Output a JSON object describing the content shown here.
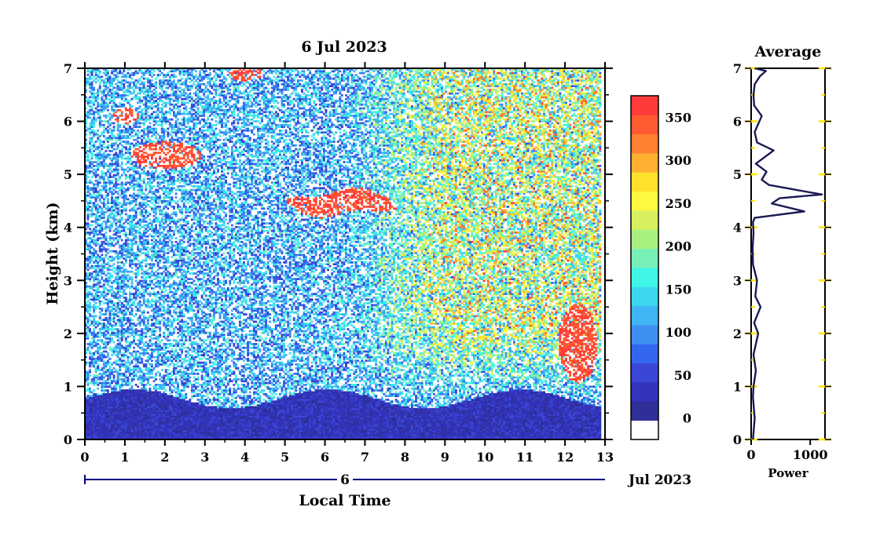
{
  "colors": {
    "axis": "#000000",
    "tick_yellow": "#ffe600",
    "navy": "#000080",
    "avg_line": "#1a1a55"
  },
  "chart_data": [
    {
      "type": "heatmap",
      "title": "6 Jul 2023",
      "xlabel": "Local Time",
      "ylabel": "Height (km)",
      "xlim": [
        0,
        13
      ],
      "ylim": [
        0,
        7
      ],
      "x_ticks": [
        "0",
        "1",
        "2",
        "3",
        "4",
        "5",
        "6",
        "7",
        "8",
        "9",
        "10",
        "11",
        "12",
        "13"
      ],
      "y_ticks": [
        "0",
        "1",
        "2",
        "3",
        "4",
        "5",
        "6",
        "7"
      ],
      "date_bar": {
        "day": "6",
        "month_year": "Jul 2023"
      },
      "colorbar": {
        "ticks": [
          "0",
          "50",
          "100",
          "150",
          "200",
          "250",
          "300",
          "350"
        ],
        "min": -25,
        "max": 375,
        "colors": [
          "#ffffff",
          "#2f2f99",
          "#3333bb",
          "#3a46d6",
          "#3366ee",
          "#3f8ff0",
          "#40b4f5",
          "#3dd8f0",
          "#40f6e6",
          "#78f0b8",
          "#a8f080",
          "#d6f060",
          "#fff840",
          "#ffe02a",
          "#ffb030",
          "#ff8030",
          "#ff5a30",
          "#ff3a3a"
        ]
      },
      "features": [
        {
          "name": "boundary layer",
          "x": [
            0,
            12.9
          ],
          "y": [
            0,
            1.0
          ],
          "value": 25
        },
        {
          "name": "main echo layer",
          "x": [
            4.6,
            8.3
          ],
          "y": [
            4.1,
            4.8
          ],
          "value": 375
        },
        {
          "name": "upper patches",
          "x": [
            0.8,
            3.7
          ],
          "y": [
            4.8,
            6.3
          ],
          "value": 375
        },
        {
          "name": "top patch",
          "x": [
            3.6,
            4.4
          ],
          "y": [
            6.7,
            7.0
          ],
          "value": 375
        },
        {
          "name": "late echoes",
          "x": [
            11.3,
            12.9
          ],
          "y": [
            0.9,
            2.8
          ],
          "value": 375
        }
      ]
    },
    {
      "type": "line",
      "title": "Average",
      "xlabel": "Power",
      "ylabel": "",
      "xlim": [
        0,
        1250
      ],
      "ylim": [
        0,
        7
      ],
      "x_ticks": [
        "0",
        "1000"
      ],
      "y_ticks": [
        "0",
        "1",
        "2",
        "3",
        "4",
        "5",
        "6",
        "7"
      ],
      "series": [
        {
          "x": [
            30,
            60,
            30,
            40,
            80,
            40,
            120,
            50,
            160,
            70,
            100,
            30,
            25,
            40,
            30,
            60,
            900,
            350,
            480,
            1200,
            700,
            300,
            180,
            260,
            80,
            380,
            100,
            60,
            180,
            50,
            40,
            60,
            150,
            250,
            60
          ],
          "y": [
            0,
            0.4,
            0.8,
            1.0,
            1.3,
            1.6,
            2.0,
            2.2,
            2.5,
            2.7,
            3.0,
            3.3,
            3.6,
            3.9,
            4.1,
            4.18,
            4.3,
            4.45,
            4.55,
            4.62,
            4.72,
            4.8,
            4.9,
            5.05,
            5.2,
            5.45,
            5.6,
            5.8,
            6.1,
            6.3,
            6.5,
            6.7,
            6.85,
            6.95,
            7.0
          ]
        }
      ]
    }
  ]
}
